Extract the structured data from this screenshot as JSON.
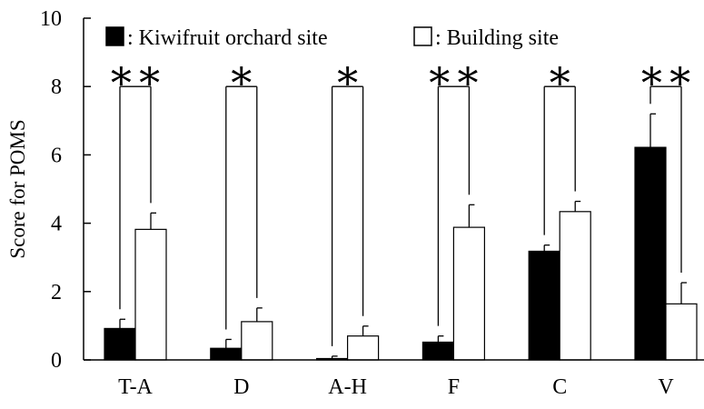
{
  "chart_data": {
    "type": "bar",
    "categories": [
      "T-A",
      "D",
      "A-H",
      "F",
      "C",
      "V"
    ],
    "series": [
      {
        "name": "Kiwifruit orchard site",
        "legend_label": ": Kiwifruit orchard site",
        "fill": "#000000",
        "values": [
          0.92,
          0.34,
          0.04,
          0.52,
          3.18,
          6.22
        ],
        "errors": [
          0.27,
          0.26,
          0.07,
          0.18,
          0.18,
          0.98
        ]
      },
      {
        "name": "Building site",
        "legend_label": ": Building site",
        "fill": "#ffffff",
        "values": [
          3.82,
          1.12,
          0.7,
          3.88,
          4.34,
          1.64
        ],
        "errors": [
          0.48,
          0.4,
          0.29,
          0.66,
          0.3,
          0.62
        ]
      }
    ],
    "significance": [
      "**",
      "*",
      "*",
      "**",
      "*",
      "**"
    ],
    "ylabel": "Score for POMS",
    "xlabel": "",
    "ylim": [
      0,
      10
    ],
    "yticks": [
      "0",
      "2",
      "4",
      "6",
      "8",
      "10"
    ],
    "bracket_top": 8,
    "grid": false,
    "legend_position": "top"
  }
}
